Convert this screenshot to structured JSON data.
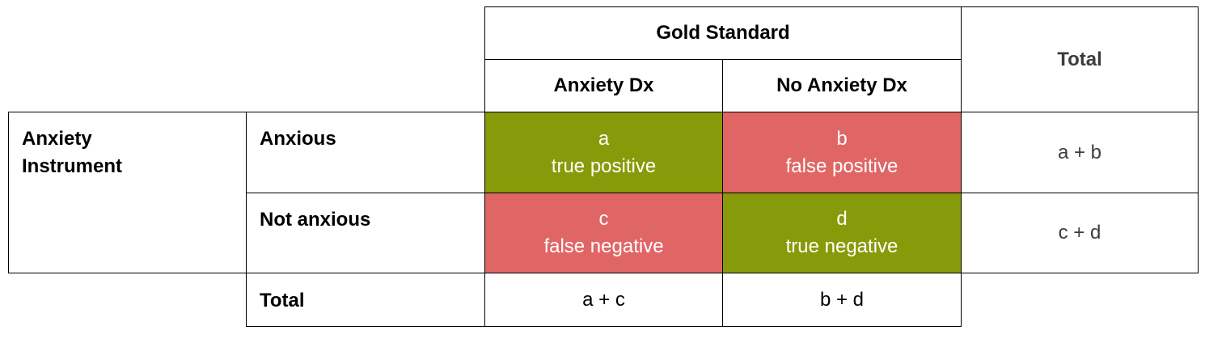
{
  "header": {
    "gold_standard": "Gold Standard",
    "total_col": "Total",
    "anxiety_dx": "Anxiety Dx",
    "no_anxiety_dx": "No Anxiety Dx"
  },
  "rows": {
    "instrument_line1": "Anxiety",
    "instrument_line2": "Instrument",
    "anxious": "Anxious",
    "not_anxious": "Not anxious",
    "total_row": "Total"
  },
  "cells": {
    "a_letter": "a",
    "a_label": "true positive",
    "b_letter": "b",
    "b_label": "false positive",
    "c_letter": "c",
    "c_label": "false negative",
    "d_letter": "d",
    "d_label": "true negative"
  },
  "totals": {
    "a_plus_b": "a + b",
    "c_plus_d": "c + d",
    "a_plus_c": "a + c",
    "b_plus_d": "b + d"
  },
  "colors": {
    "correct": "#879b0a",
    "incorrect": "#e06666",
    "border": "#000000"
  }
}
